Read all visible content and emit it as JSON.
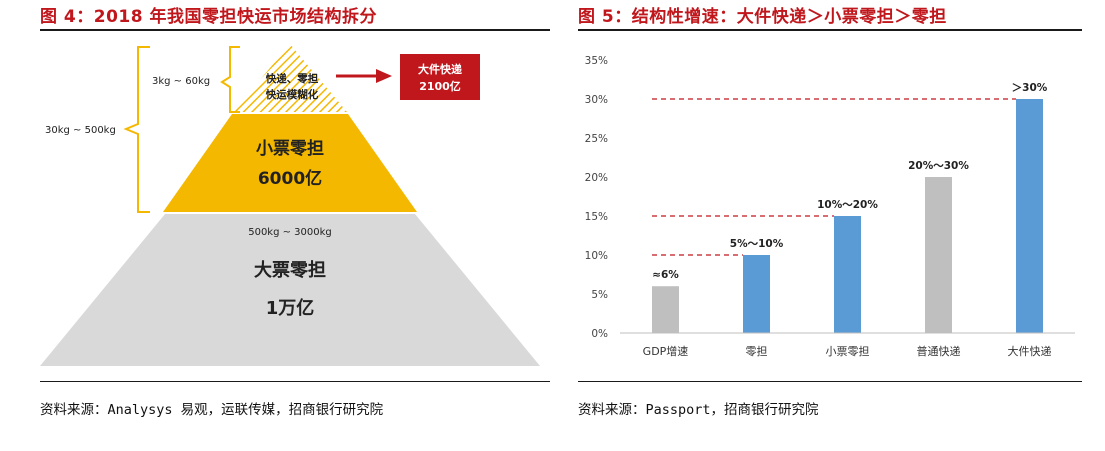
{
  "figure4": {
    "title": "图 4：2018 年我国零担快运市场结构拆分",
    "source": "资料来源：Analysys 易观，运联传媒，招商银行研究院",
    "weight_brackets": {
      "outer": "30kg ~ 500kg",
      "inner": "3kg ~ 60kg",
      "bottom": "500kg ~ 3000kg"
    },
    "tiers": {
      "top_line1": "快递、零担",
      "top_line2": "快运模糊化",
      "middle_name": "小票零担",
      "middle_value": "6000亿",
      "bottom_name": "大票零担",
      "bottom_value": "1万亿"
    },
    "callout": {
      "line1": "大件快递",
      "line2": "2100亿"
    },
    "colors": {
      "top_hatch": "#f5b800",
      "middle": "#f5b800",
      "bottom": "#d9d9d9",
      "callout": "#c0171d",
      "bracket": "#f5b800"
    }
  },
  "figure5": {
    "title": "图 5：结构性增速：大件快递＞小票零担＞零担",
    "source": "资料来源：Passport，招商银行研究院",
    "chart_data": {
      "type": "bar",
      "categories": [
        "GDP增速",
        "零担",
        "小票零担",
        "普通快递",
        "大件快递"
      ],
      "values": [
        6,
        10,
        15,
        20,
        30
      ],
      "data_labels": [
        "≈6%",
        "5%～10%",
        "10%～20%",
        "20%～30%",
        "＞30%"
      ],
      "bar_colors": [
        "#bfbfbf",
        "#5b9bd5",
        "#5b9bd5",
        "#bfbfbf",
        "#5b9bd5"
      ],
      "reference_lines": [
        10,
        15,
        30
      ],
      "reference_line_color": "#c0171d",
      "ylim": [
        0,
        35
      ],
      "yticks": [
        0,
        5,
        10,
        15,
        20,
        25,
        30,
        35
      ],
      "ytick_labels": [
        "0%",
        "5%",
        "10%",
        "15%",
        "20%",
        "25%",
        "30%",
        "35%"
      ],
      "grid": false,
      "legend": "none"
    }
  }
}
